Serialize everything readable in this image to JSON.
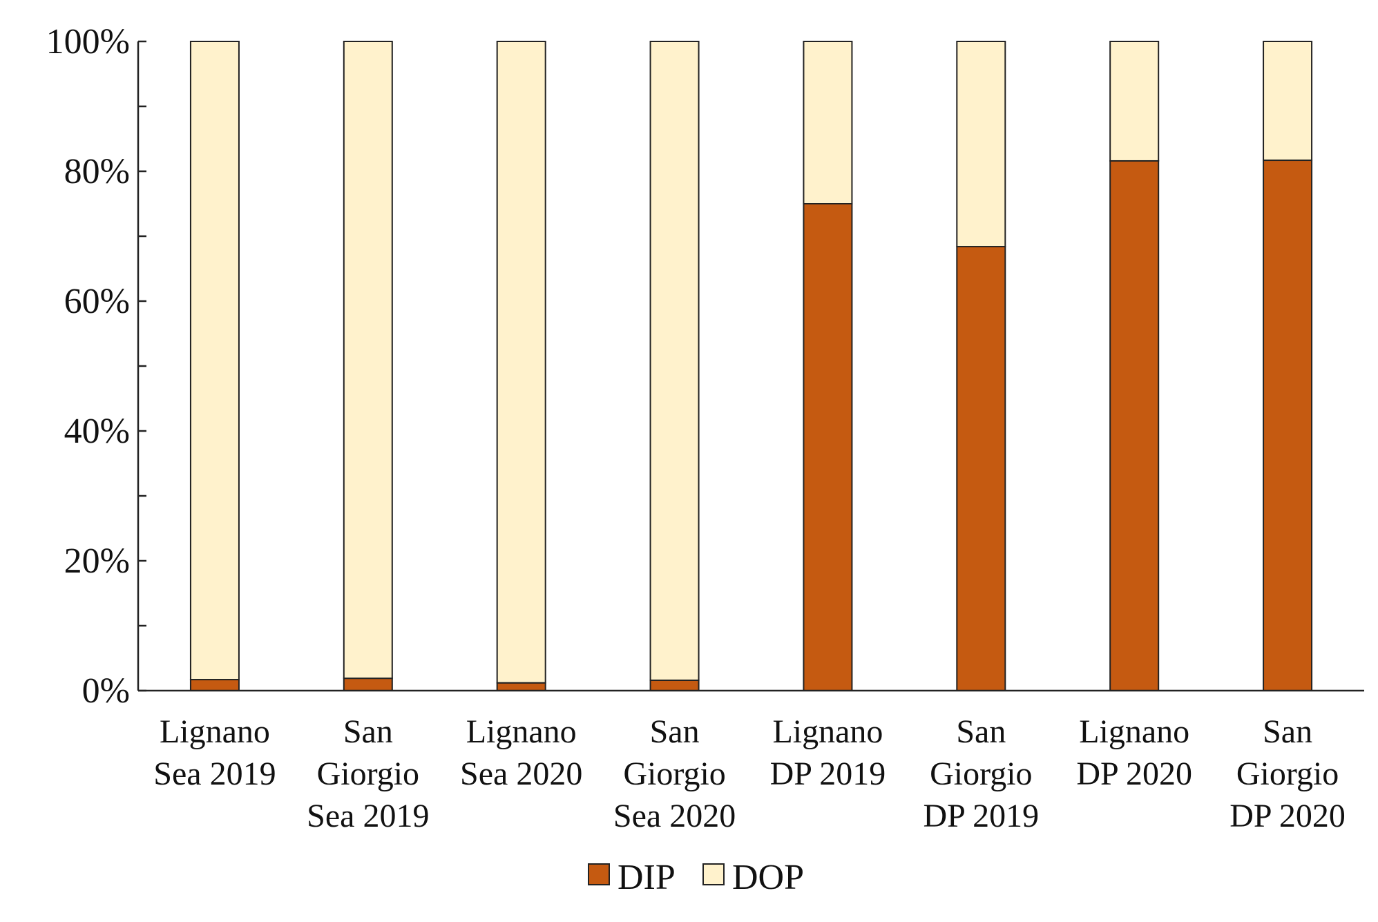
{
  "chart_data": {
    "type": "bar",
    "stacked": true,
    "percent": true,
    "title": "",
    "xlabel": "",
    "ylabel": "",
    "ylim": [
      0,
      100
    ],
    "y_ticks": [
      "0%",
      "20%",
      "40%",
      "60%",
      "80%",
      "100%"
    ],
    "categories": [
      [
        "Lignano",
        "Sea 2019"
      ],
      [
        "San",
        "Giorgio",
        "Sea 2019"
      ],
      [
        "Lignano",
        "Sea 2020"
      ],
      [
        "San",
        "Giorgio",
        "Sea 2020"
      ],
      [
        "Lignano",
        "DP 2019"
      ],
      [
        "San",
        "Giorgio",
        "DP 2019"
      ],
      [
        "Lignano",
        "DP 2020"
      ],
      [
        "San",
        "Giorgio",
        "DP 2020"
      ]
    ],
    "series": [
      {
        "name": "DIP",
        "color": "#C55A11",
        "values": [
          1.7,
          1.9,
          1.2,
          1.6,
          75.0,
          68.4,
          81.6,
          81.7
        ]
      },
      {
        "name": "DOP",
        "color": "#FFF2CC",
        "values": [
          98.3,
          98.1,
          98.8,
          98.4,
          25.0,
          31.6,
          18.4,
          18.3
        ]
      }
    ],
    "legend": [
      "DIP",
      "DOP"
    ],
    "legend_position": "bottom-center",
    "grid": false
  }
}
